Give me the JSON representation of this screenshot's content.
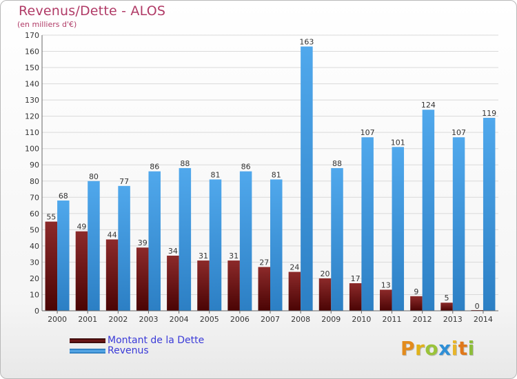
{
  "title": "Revenus/Dette - ALOS",
  "subtitle": "(en milliers d'€)",
  "colors": {
    "dette": "#7a1111",
    "revenus": "#3d97df",
    "title": "#b03a66",
    "legend_text": "#3a3ad8"
  },
  "legend": [
    {
      "label": "Montant de la Dette",
      "color": "#6b0f0f"
    },
    {
      "label": "Revenus",
      "color": "#3d97df"
    }
  ],
  "logo": {
    "letters": [
      "P",
      "r",
      "o",
      "x",
      "i",
      "t",
      "i"
    ]
  },
  "chart_data": {
    "type": "bar",
    "categories": [
      "2000",
      "2001",
      "2002",
      "2003",
      "2004",
      "2005",
      "2006",
      "2007",
      "2008",
      "2009",
      "2010",
      "2011",
      "2012",
      "2013",
      "2014"
    ],
    "series": [
      {
        "name": "Montant de la Dette",
        "values": [
          55,
          49,
          44,
          39,
          34,
          31,
          31,
          27,
          24,
          20,
          17,
          13,
          9,
          5,
          0
        ]
      },
      {
        "name": "Revenus",
        "values": [
          68,
          80,
          77,
          86,
          88,
          81,
          86,
          81,
          163,
          88,
          107,
          101,
          124,
          107,
          119
        ]
      }
    ],
    "ylim": [
      0,
      170
    ],
    "yticks": [
      0,
      10,
      20,
      30,
      40,
      50,
      60,
      70,
      80,
      90,
      100,
      110,
      120,
      130,
      140,
      150,
      160,
      170
    ],
    "title": "Revenus/Dette - ALOS",
    "ylabel": "(en milliers d'€)",
    "grid": true,
    "legend_position": "bottom-left"
  }
}
